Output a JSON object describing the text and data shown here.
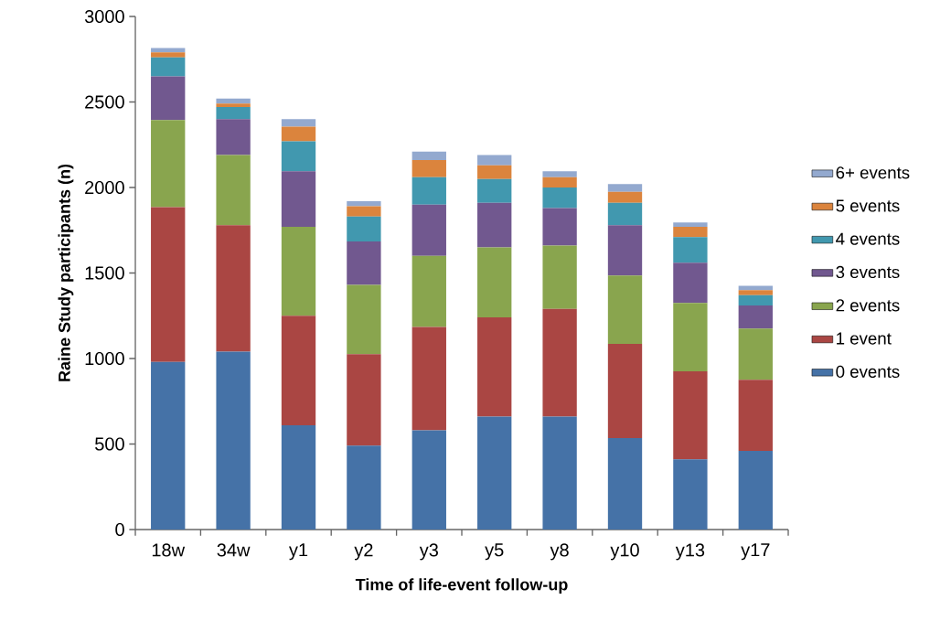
{
  "chart_data": {
    "type": "bar",
    "stacked": true,
    "xlabel": "Time of life-event follow-up",
    "ylabel": "Raine Study participants (n)",
    "categories": [
      "18w",
      "34w",
      "y1",
      "y2",
      "y3",
      "y5",
      "y8",
      "y10",
      "y13",
      "y17"
    ],
    "series": [
      {
        "name": "0 events",
        "color": "#4572a7",
        "values": [
          980,
          1040,
          610,
          490,
          580,
          660,
          660,
          535,
          410,
          460
        ]
      },
      {
        "name": "1 event",
        "color": "#aa4643",
        "values": [
          905,
          740,
          640,
          535,
          605,
          580,
          630,
          550,
          515,
          415
        ]
      },
      {
        "name": "2 events",
        "color": "#89a54e",
        "values": [
          510,
          410,
          520,
          405,
          415,
          410,
          370,
          400,
          400,
          300
        ]
      },
      {
        "name": "3 events",
        "color": "#71588f",
        "values": [
          255,
          210,
          325,
          255,
          300,
          260,
          220,
          295,
          235,
          135
        ]
      },
      {
        "name": "4 events",
        "color": "#4198af",
        "values": [
          110,
          70,
          175,
          145,
          160,
          140,
          120,
          130,
          150,
          60
        ]
      },
      {
        "name": "5 events",
        "color": "#db843d",
        "values": [
          30,
          20,
          85,
          60,
          100,
          80,
          60,
          65,
          60,
          30
        ]
      },
      {
        "name": "6+ events",
        "color": "#93a9cf",
        "values": [
          25,
          30,
          45,
          30,
          50,
          60,
          35,
          45,
          25,
          25
        ]
      }
    ],
    "ylim": [
      0,
      3000
    ],
    "yticks": [
      0,
      500,
      1000,
      1500,
      2000,
      2500,
      3000
    ],
    "grid": false,
    "legend": "right"
  }
}
